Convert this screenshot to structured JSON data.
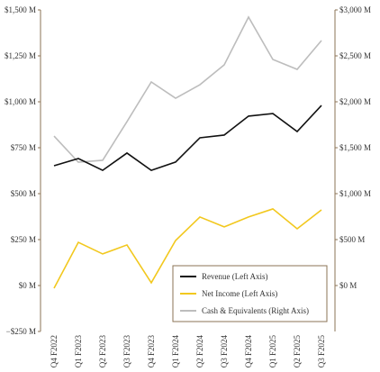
{
  "chart_data": {
    "type": "line",
    "categories": [
      "Q4 F2022",
      "Q1 F2023",
      "Q2 F2023",
      "Q3 F2023",
      "Q4 F2023",
      "Q1 F2024",
      "Q2 F2024",
      "Q3 F2024",
      "Q4 F2024",
      "Q1 F2025",
      "Q2 F2025",
      "Q3 F2025"
    ],
    "series": [
      {
        "name": "Revenue (Left Axis)",
        "color": "#111111",
        "values": [
          652,
          691,
          627,
          721,
          627,
          672,
          804,
          819,
          922,
          936,
          838,
          980
        ]
      },
      {
        "name": "Net Income (Left Axis)",
        "color": "#f2c81e",
        "values": [
          -15,
          235,
          172,
          221,
          15,
          245,
          373,
          319,
          373,
          417,
          309,
          412
        ]
      },
      {
        "name": "Cash & Equivalents (Right Axis)",
        "color": "#bdbdbd",
        "axis": "y2",
        "values": [
          1627,
          1343,
          1363,
          1784,
          2216,
          2039,
          2186,
          2402,
          2922,
          2461,
          2353,
          2667
        ]
      }
    ],
    "ylim": [
      -250,
      1500
    ],
    "yticks": [
      {
        "value": -250,
        "label": "−$250 M"
      },
      {
        "value": 0,
        "label": "$0 M"
      },
      {
        "value": 250,
        "label": "$250 M"
      },
      {
        "value": 500,
        "label": "$500 M"
      },
      {
        "value": 750,
        "label": "$750 M"
      },
      {
        "value": 1000,
        "label": "$1,000 M"
      },
      {
        "value": 1250,
        "label": "$1,250 M"
      },
      {
        "value": 1500,
        "label": "$1,500 M"
      }
    ],
    "y2lim": [
      -500,
      3000
    ],
    "y2ticks": [
      {
        "value": 0,
        "label": "$0 M"
      },
      {
        "value": 500,
        "label": "$500 M"
      },
      {
        "value": 1000,
        "label": "$1,000 M"
      },
      {
        "value": 1500,
        "label": "$1,500 M"
      },
      {
        "value": 2000,
        "label": "$2,000 M"
      },
      {
        "value": 2500,
        "label": "$2,500 M"
      },
      {
        "value": 3000,
        "label": "$3,000 M"
      }
    ],
    "legend": "lower right"
  }
}
